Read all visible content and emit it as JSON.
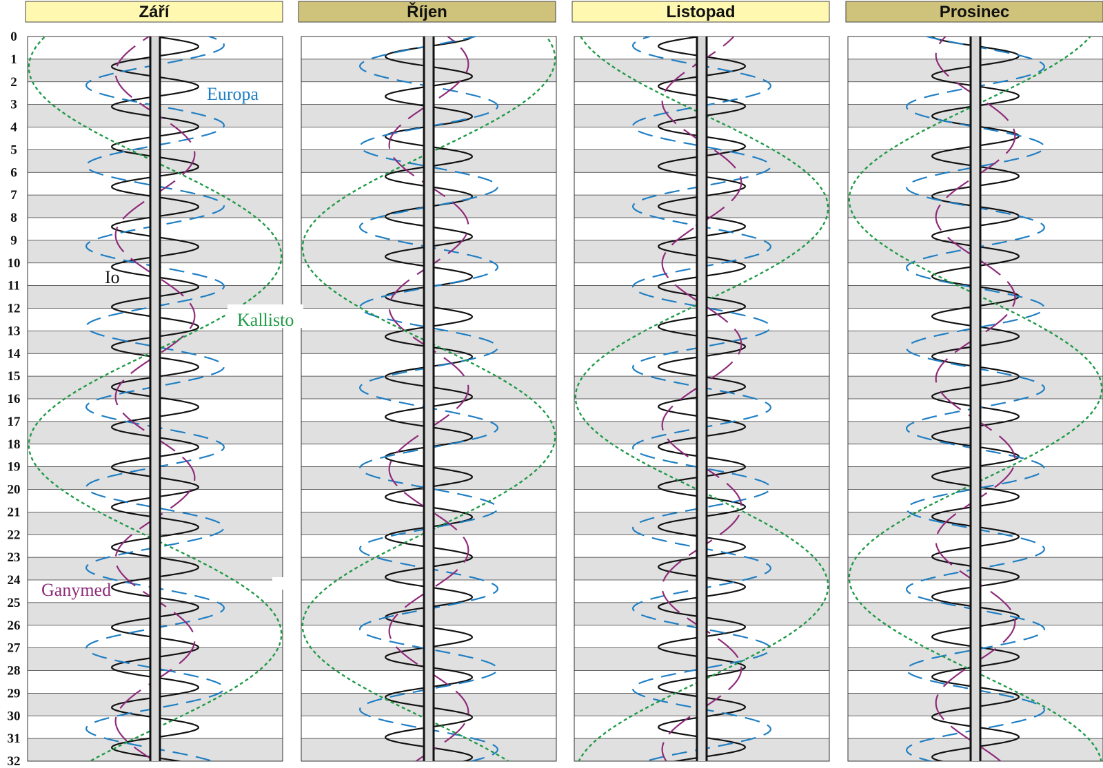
{
  "months": [
    {
      "name": "Září",
      "header_color": "#fff8b0",
      "io_phase": 0.0,
      "europa_phase": 0.9,
      "ganymede_phase": 3.3,
      "callisto_phase": 4.2
    },
    {
      "name": "Říjen",
      "header_color": "#cfc27a",
      "io_phase": 1.6,
      "europa_phase": 2.4,
      "ganymede_phase": 0.5,
      "callisto_phase": 1.2
    },
    {
      "name": "Listopad",
      "header_color": "#fff8b0",
      "io_phase": 3.2,
      "europa_phase": 4.0,
      "ganymede_phase": 2.2,
      "callisto_phase": 5.0
    },
    {
      "name": "Prosinec",
      "header_color": "#cfc27a",
      "io_phase": 4.8,
      "europa_phase": 5.5,
      "ganymede_phase": 4.0,
      "callisto_phase": 2.0
    }
  ],
  "days": [
    "0",
    "1",
    "2",
    "3",
    "4",
    "5",
    "6",
    "7",
    "8",
    "9",
    "10",
    "11",
    "12",
    "13",
    "14",
    "15",
    "16",
    "17",
    "18",
    "19",
    "20",
    "21",
    "22",
    "23",
    "24",
    "25",
    "26",
    "27",
    "28",
    "29",
    "30",
    "31",
    "32"
  ],
  "moons": [
    {
      "name": "Io",
      "color": "#111111",
      "period_days": 1.769,
      "amplitude": 0.17,
      "dash": ""
    },
    {
      "name": "Europa",
      "color": "#1f7fc4",
      "period_days": 3.551,
      "amplitude": 0.27,
      "dash": "22,12"
    },
    {
      "name": "Ganymed",
      "color": "#8e2a7a",
      "period_days": 7.155,
      "amplitude": 0.155,
      "dash": "40,14"
    },
    {
      "name": "Kallisto",
      "color": "#1f9a46",
      "period_days": 16.689,
      "amplitude": 0.495,
      "dash": "5,4"
    }
  ],
  "labels": {
    "io": "Io",
    "europa": "Europa",
    "ganymede": "Ganymed",
    "callisto": "Kallisto"
  },
  "colors": {
    "stripe": "#e0e0e0",
    "planet_fill": "#d8d8d8",
    "grid": "#333333"
  }
}
